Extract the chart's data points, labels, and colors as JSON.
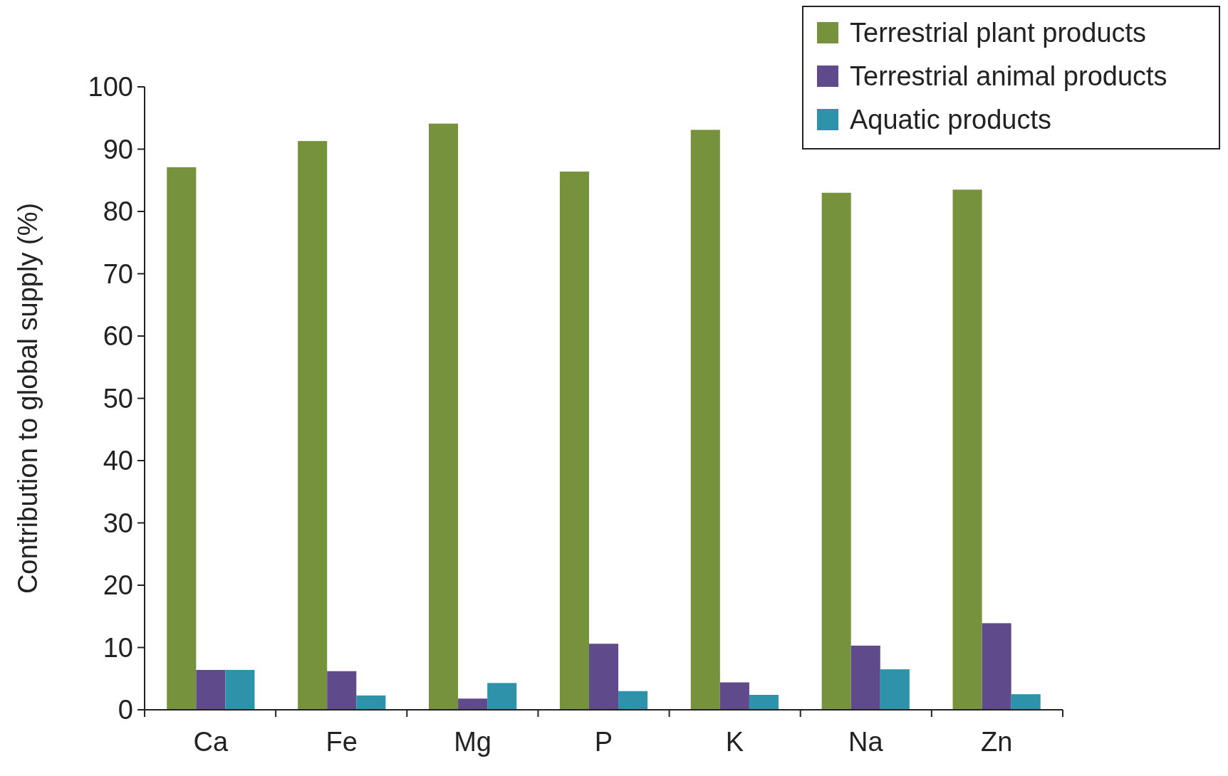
{
  "chart_data": {
    "type": "bar",
    "ylabel": "Contribution to global supply (%)",
    "categories": [
      "Ca",
      "Fe",
      "Mg",
      "P",
      "K",
      "Na",
      "Zn"
    ],
    "series": [
      {
        "name": "Terrestrial plant products",
        "color": "#76923c",
        "values": [
          87.1,
          91.3,
          94.1,
          86.4,
          93.1,
          83.0,
          83.5
        ]
      },
      {
        "name": "Terrestrial animal products",
        "color": "#5f4a8b",
        "values": [
          6.4,
          6.2,
          1.8,
          10.6,
          4.4,
          10.3,
          13.9
        ]
      },
      {
        "name": "Aquatic products",
        "color": "#2e93aa",
        "values": [
          6.4,
          2.3,
          4.3,
          3.0,
          2.4,
          6.5,
          2.5
        ]
      }
    ],
    "ylim": [
      0,
      100
    ],
    "yticks": [
      0,
      10,
      20,
      30,
      40,
      50,
      60,
      70,
      80,
      90,
      100
    ],
    "grid": false,
    "legend": "top right"
  }
}
